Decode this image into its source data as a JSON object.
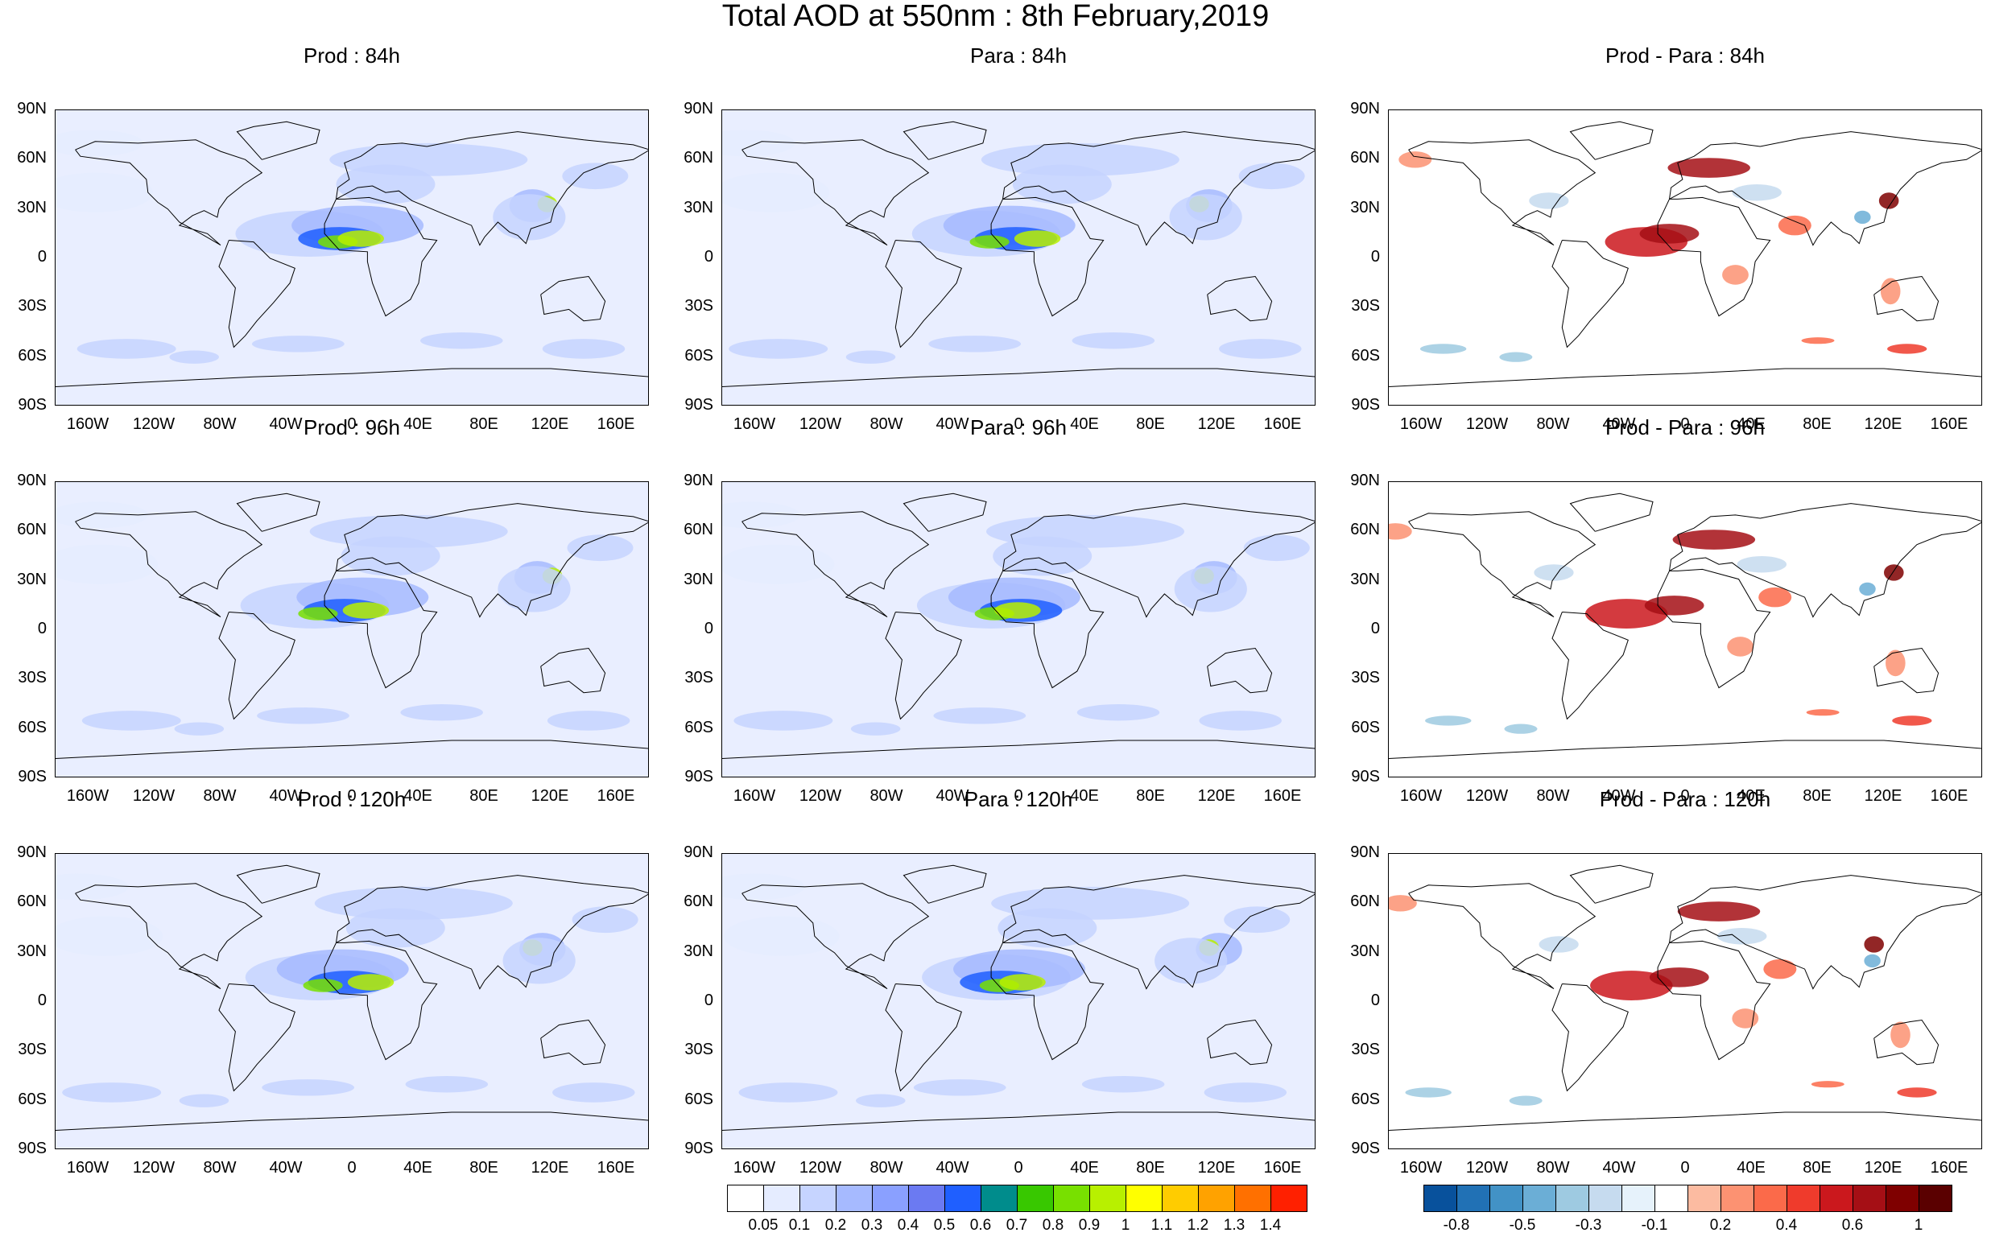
{
  "title": "Total AOD at 550nm : 8th February,2019",
  "panels": [
    {
      "label": "Prod : 84h",
      "kind": "aod",
      "row": 0,
      "col": 0
    },
    {
      "label": "Para : 84h",
      "kind": "aod",
      "row": 0,
      "col": 1
    },
    {
      "label": "Prod - Para : 84h",
      "kind": "diff",
      "row": 0,
      "col": 2
    },
    {
      "label": "Prod : 96h",
      "kind": "aod",
      "row": 1,
      "col": 0
    },
    {
      "label": "Para : 96h",
      "kind": "aod",
      "row": 1,
      "col": 1
    },
    {
      "label": "Prod - Para : 96h",
      "kind": "diff",
      "row": 1,
      "col": 2
    },
    {
      "label": "Prod : 120h",
      "kind": "aod",
      "row": 2,
      "col": 0
    },
    {
      "label": "Para : 120h",
      "kind": "aod",
      "row": 2,
      "col": 1
    },
    {
      "label": "Prod - Para : 120h",
      "kind": "diff",
      "row": 2,
      "col": 2
    }
  ],
  "lat_labels": [
    "90N",
    "60N",
    "30N",
    "0",
    "30S",
    "60S",
    "90S"
  ],
  "lon_labels": [
    "160W",
    "120W",
    "80W",
    "40W",
    "0",
    "40E",
    "80E",
    "120E",
    "160E"
  ],
  "aod_colorbar": {
    "labels": [
      "0.05",
      "0.1",
      "0.2",
      "0.3",
      "0.4",
      "0.5",
      "0.6",
      "0.7",
      "0.8",
      "0.9",
      "1",
      "1.1",
      "1.2",
      "1.3",
      "1.4"
    ],
    "colors": [
      "#ffffff",
      "#e5ecff",
      "#c6d4ff",
      "#a6baff",
      "#8aa0ff",
      "#6b7af2",
      "#1f5fff",
      "#008c8c",
      "#38c800",
      "#78e000",
      "#b8f000",
      "#ffff00",
      "#ffcc00",
      "#ffa200",
      "#ff7000",
      "#ff2000"
    ]
  },
  "diff_colorbar": {
    "labels": [
      "-0.8",
      "-0.5",
      "-0.3",
      "-0.1",
      "0.2",
      "0.4",
      "0.6",
      "1"
    ],
    "colors": [
      "#08519c",
      "#2171b5",
      "#4292c6",
      "#6baed6",
      "#9ecae1",
      "#c6dbef",
      "#e6f2fb",
      "#ffffff",
      "#fcbba1",
      "#fc9272",
      "#fb6a4a",
      "#ef3b2c",
      "#cb181d",
      "#a50f15",
      "#7f0000",
      "#5a0000"
    ]
  }
}
